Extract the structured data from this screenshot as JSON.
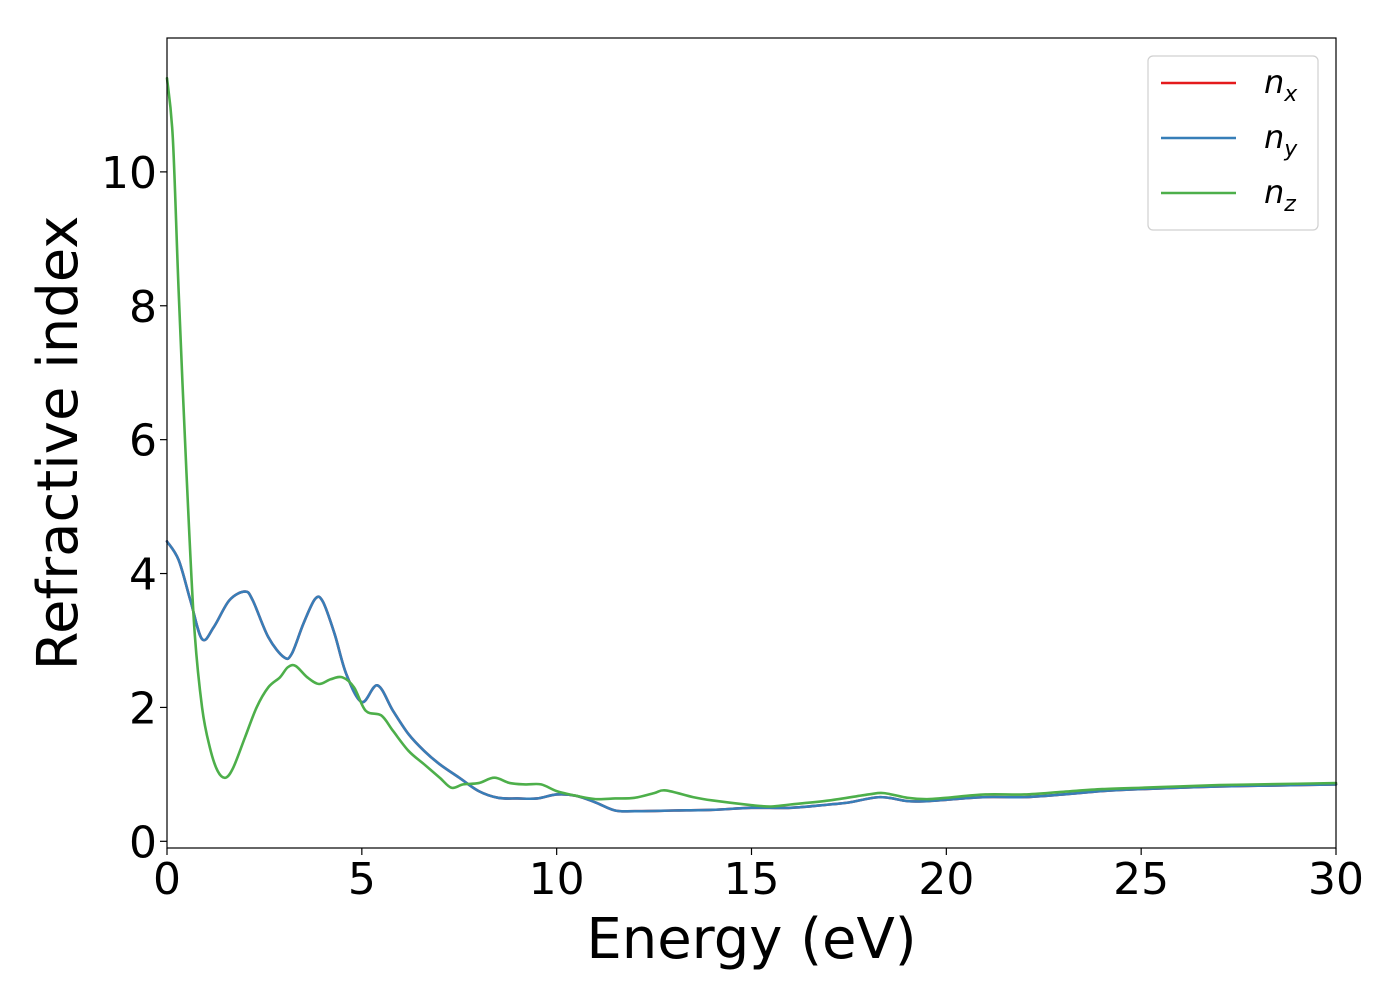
{
  "chart_data": {
    "type": "line",
    "xlabel": "Energy (eV)",
    "ylabel": "Refractive index",
    "xlim": [
      0,
      30
    ],
    "ylim": [
      -0.1,
      12.0
    ],
    "xticks": [
      0,
      5,
      10,
      15,
      20,
      25,
      30
    ],
    "yticks": [
      0,
      2,
      4,
      6,
      8,
      10
    ],
    "grid": false,
    "legend_position": "top-right",
    "series": [
      {
        "name": "n_x",
        "label_main": "n",
        "label_sub": "x",
        "color": "#e41a1c",
        "x": [
          0,
          0.3,
          0.6,
          0.9,
          1.2,
          1.6,
          2.0,
          2.2,
          2.6,
          3.0,
          3.2,
          3.5,
          3.8,
          4.0,
          4.3,
          4.6,
          5.0,
          5.4,
          5.8,
          6.2,
          6.6,
          7.0,
          7.5,
          8.0,
          8.5,
          9.0,
          9.5,
          10.0,
          10.5,
          11.0,
          11.5,
          12.0,
          13.0,
          14.0,
          15.0,
          16.0,
          17.0,
          17.5,
          18.3,
          19.0,
          19.5,
          20.0,
          21.0,
          22.0,
          23.0,
          24.0,
          25.0,
          26.0,
          27.0,
          28.0,
          29.0,
          30.0
        ],
        "y": [
          4.48,
          4.2,
          3.6,
          3.02,
          3.2,
          3.6,
          3.73,
          3.6,
          3.05,
          2.75,
          2.8,
          3.25,
          3.62,
          3.58,
          3.1,
          2.5,
          2.08,
          2.33,
          1.95,
          1.6,
          1.35,
          1.15,
          0.95,
          0.75,
          0.65,
          0.64,
          0.64,
          0.7,
          0.68,
          0.58,
          0.46,
          0.45,
          0.46,
          0.47,
          0.5,
          0.5,
          0.55,
          0.58,
          0.66,
          0.6,
          0.6,
          0.62,
          0.66,
          0.66,
          0.7,
          0.75,
          0.78,
          0.8,
          0.82,
          0.83,
          0.84,
          0.85
        ]
      },
      {
        "name": "n_y",
        "label_main": "n",
        "label_sub": "y",
        "color": "#377eb8",
        "x": [
          0,
          0.3,
          0.6,
          0.9,
          1.2,
          1.6,
          2.0,
          2.2,
          2.6,
          3.0,
          3.2,
          3.5,
          3.8,
          4.0,
          4.3,
          4.6,
          5.0,
          5.4,
          5.8,
          6.2,
          6.6,
          7.0,
          7.5,
          8.0,
          8.5,
          9.0,
          9.5,
          10.0,
          10.5,
          11.0,
          11.5,
          12.0,
          13.0,
          14.0,
          15.0,
          16.0,
          17.0,
          17.5,
          18.3,
          19.0,
          19.5,
          20.0,
          21.0,
          22.0,
          23.0,
          24.0,
          25.0,
          26.0,
          27.0,
          28.0,
          29.0,
          30.0
        ],
        "y": [
          4.48,
          4.2,
          3.6,
          3.02,
          3.2,
          3.6,
          3.73,
          3.6,
          3.05,
          2.75,
          2.8,
          3.25,
          3.62,
          3.58,
          3.1,
          2.5,
          2.08,
          2.33,
          1.95,
          1.6,
          1.35,
          1.15,
          0.95,
          0.75,
          0.65,
          0.64,
          0.64,
          0.7,
          0.68,
          0.58,
          0.46,
          0.45,
          0.46,
          0.47,
          0.5,
          0.5,
          0.55,
          0.58,
          0.66,
          0.6,
          0.6,
          0.62,
          0.66,
          0.66,
          0.7,
          0.75,
          0.78,
          0.8,
          0.82,
          0.83,
          0.84,
          0.85
        ]
      },
      {
        "name": "n_z",
        "label_main": "n",
        "label_sub": "z",
        "color": "#4daf4a",
        "x": [
          0,
          0.15,
          0.3,
          0.5,
          0.7,
          0.9,
          1.1,
          1.3,
          1.5,
          1.7,
          2.0,
          2.3,
          2.6,
          2.9,
          3.1,
          3.3,
          3.6,
          3.9,
          4.2,
          4.5,
          4.8,
          5.1,
          5.5,
          5.8,
          6.2,
          6.6,
          7.0,
          7.3,
          7.6,
          8.0,
          8.4,
          8.8,
          9.2,
          9.6,
          10.0,
          10.5,
          11.0,
          11.5,
          12.0,
          12.5,
          12.8,
          13.5,
          14.0,
          15.0,
          15.5,
          16.0,
          17.0,
          18.0,
          18.4,
          19.0,
          19.5,
          20.0,
          21.0,
          22.0,
          23.0,
          24.0,
          25.0,
          26.0,
          27.0,
          28.0,
          29.0,
          30.0
        ],
        "y": [
          11.4,
          10.5,
          8.2,
          5.5,
          3.2,
          2.0,
          1.4,
          1.05,
          0.95,
          1.1,
          1.55,
          2.0,
          2.3,
          2.45,
          2.6,
          2.62,
          2.45,
          2.35,
          2.42,
          2.45,
          2.3,
          1.95,
          1.88,
          1.65,
          1.35,
          1.15,
          0.95,
          0.8,
          0.85,
          0.87,
          0.95,
          0.87,
          0.85,
          0.85,
          0.75,
          0.68,
          0.63,
          0.64,
          0.65,
          0.72,
          0.76,
          0.66,
          0.61,
          0.54,
          0.52,
          0.55,
          0.61,
          0.7,
          0.72,
          0.65,
          0.63,
          0.65,
          0.7,
          0.7,
          0.74,
          0.78,
          0.8,
          0.82,
          0.84,
          0.85,
          0.86,
          0.87
        ]
      }
    ]
  }
}
